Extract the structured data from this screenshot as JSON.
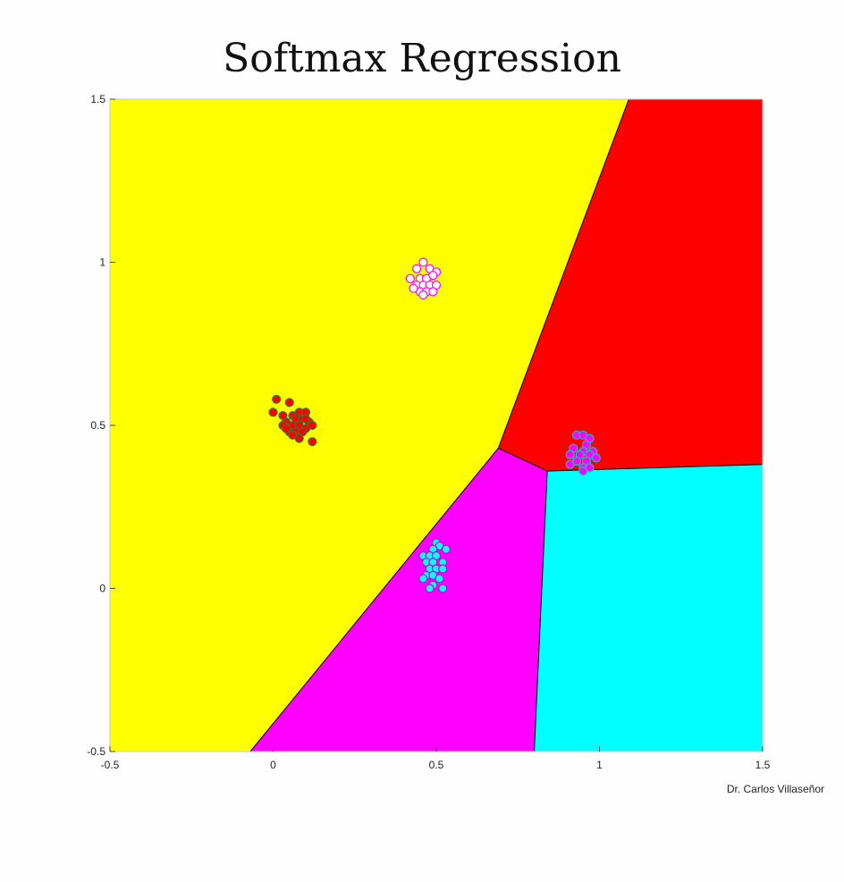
{
  "credit": "Dr. Carlos Villaseñor",
  "colors": {
    "background": "#fefefe",
    "region_yellow": "#ffff00",
    "region_red": "#ff0000",
    "region_magenta": "#ff00ff",
    "region_cyan": "#00ffff"
  },
  "chart_data": {
    "type": "scatter",
    "title": "Softmax Regression",
    "xlabel": "",
    "ylabel": "",
    "xlim": [
      -0.5,
      1.5
    ],
    "ylim": [
      -0.5,
      1.5
    ],
    "xticks": [
      -0.5,
      0,
      0.5,
      1,
      1.5
    ],
    "yticks": [
      -0.5,
      0,
      0.5,
      1,
      1.5
    ],
    "xtick_labels": [
      "-0.5",
      "0",
      "0.5",
      "1",
      "1.5"
    ],
    "ytick_labels": [
      "-0.5",
      "0",
      "0.5",
      "1",
      "1.5"
    ],
    "grid": false,
    "regions": [
      {
        "color": "#ffff00",
        "polygon": [
          [
            -0.5,
            -0.5
          ],
          [
            -0.07,
            -0.5
          ],
          [
            0.69,
            0.43
          ],
          [
            1.09,
            1.5
          ],
          [
            -0.5,
            1.5
          ]
        ]
      },
      {
        "color": "#ff0000",
        "polygon": [
          [
            0.69,
            0.43
          ],
          [
            1.09,
            1.5
          ],
          [
            1.5,
            1.5
          ],
          [
            1.5,
            0.38
          ],
          [
            0.84,
            0.36
          ]
        ]
      },
      {
        "color": "#ff00ff",
        "polygon": [
          [
            -0.07,
            -0.5
          ],
          [
            0.69,
            0.43
          ],
          [
            0.84,
            0.36
          ],
          [
            0.8,
            -0.5
          ]
        ]
      },
      {
        "color": "#00ffff",
        "polygon": [
          [
            0.84,
            0.36
          ],
          [
            1.5,
            0.38
          ],
          [
            1.5,
            -0.5
          ],
          [
            0.8,
            -0.5
          ]
        ]
      }
    ],
    "series": [
      {
        "fill": "#ff0000",
        "edge": "#2e7d32",
        "points": [
          [
            0.01,
            0.58
          ],
          [
            0.05,
            0.57
          ],
          [
            0.0,
            0.54
          ],
          [
            0.03,
            0.53
          ],
          [
            0.06,
            0.53
          ],
          [
            0.08,
            0.54
          ],
          [
            0.1,
            0.54
          ],
          [
            0.04,
            0.51
          ],
          [
            0.07,
            0.52
          ],
          [
            0.09,
            0.52
          ],
          [
            0.11,
            0.51
          ],
          [
            0.03,
            0.5
          ],
          [
            0.06,
            0.5
          ],
          [
            0.08,
            0.5
          ],
          [
            0.1,
            0.49
          ],
          [
            0.05,
            0.48
          ],
          [
            0.07,
            0.48
          ],
          [
            0.09,
            0.48
          ],
          [
            0.12,
            0.5
          ],
          [
            0.06,
            0.47
          ],
          [
            0.08,
            0.46
          ],
          [
            0.12,
            0.45
          ],
          [
            0.04,
            0.49
          ],
          [
            0.1,
            0.52
          ]
        ]
      },
      {
        "fill": "#ffffff",
        "edge": "#ff00ff",
        "points": [
          [
            0.46,
            1.0
          ],
          [
            0.44,
            0.98
          ],
          [
            0.48,
            0.98
          ],
          [
            0.5,
            0.97
          ],
          [
            0.42,
            0.95
          ],
          [
            0.45,
            0.95
          ],
          [
            0.47,
            0.95
          ],
          [
            0.49,
            0.96
          ],
          [
            0.44,
            0.93
          ],
          [
            0.46,
            0.93
          ],
          [
            0.48,
            0.93
          ],
          [
            0.5,
            0.93
          ],
          [
            0.45,
            0.91
          ],
          [
            0.47,
            0.91
          ],
          [
            0.49,
            0.91
          ],
          [
            0.46,
            0.9
          ],
          [
            0.43,
            0.92
          ]
        ]
      },
      {
        "fill": "#ff00ff",
        "edge": "#00c8c8",
        "points": [
          [
            0.93,
            0.47
          ],
          [
            0.95,
            0.47
          ],
          [
            0.97,
            0.46
          ],
          [
            0.96,
            0.44
          ],
          [
            0.92,
            0.43
          ],
          [
            0.95,
            0.42
          ],
          [
            0.98,
            0.42
          ],
          [
            0.91,
            0.41
          ],
          [
            0.94,
            0.41
          ],
          [
            0.97,
            0.41
          ],
          [
            0.99,
            0.4
          ],
          [
            0.93,
            0.39
          ],
          [
            0.96,
            0.39
          ],
          [
            0.91,
            0.38
          ],
          [
            0.95,
            0.37
          ],
          [
            0.97,
            0.37
          ],
          [
            0.95,
            0.36
          ]
        ]
      },
      {
        "fill": "#00ffff",
        "edge": "#c800c8",
        "points": [
          [
            0.5,
            0.14
          ],
          [
            0.51,
            0.13
          ],
          [
            0.49,
            0.12
          ],
          [
            0.53,
            0.12
          ],
          [
            0.46,
            0.1
          ],
          [
            0.48,
            0.1
          ],
          [
            0.5,
            0.1
          ],
          [
            0.47,
            0.08
          ],
          [
            0.49,
            0.08
          ],
          [
            0.52,
            0.08
          ],
          [
            0.48,
            0.06
          ],
          [
            0.5,
            0.06
          ],
          [
            0.52,
            0.06
          ],
          [
            0.47,
            0.04
          ],
          [
            0.49,
            0.04
          ],
          [
            0.51,
            0.03
          ],
          [
            0.46,
            0.03
          ],
          [
            0.49,
            0.01
          ],
          [
            0.52,
            0.0
          ],
          [
            0.48,
            0.0
          ]
        ]
      }
    ]
  }
}
